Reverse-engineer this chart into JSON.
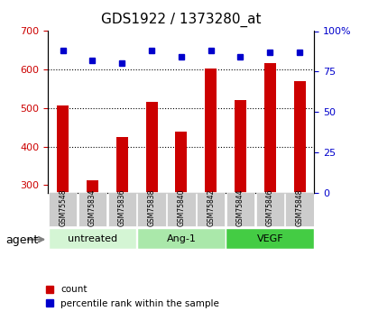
{
  "title": "GDS1922 / 1373280_at",
  "categories": [
    "GSM75548",
    "GSM75834",
    "GSM75836",
    "GSM75838",
    "GSM75840",
    "GSM75842",
    "GSM75844",
    "GSM75846",
    "GSM75848"
  ],
  "counts": [
    507,
    312,
    425,
    517,
    440,
    602,
    520,
    617,
    570
  ],
  "percentiles": [
    88,
    82,
    80,
    88,
    84,
    88,
    84,
    87,
    87
  ],
  "bar_color": "#cc0000",
  "dot_color": "#0000cc",
  "ylim_left": [
    280,
    700
  ],
  "ylim_right": [
    0,
    100
  ],
  "yticks_left": [
    300,
    400,
    500,
    600,
    700
  ],
  "yticks_right": [
    0,
    25,
    50,
    75,
    100
  ],
  "ytick_right_labels": [
    "0",
    "25",
    "50",
    "75",
    "100%"
  ],
  "groups": [
    {
      "label": "untreated",
      "start": 0,
      "end": 3,
      "color": "#d4f5d4"
    },
    {
      "label": "Ang-1",
      "start": 3,
      "end": 6,
      "color": "#aae8aa"
    },
    {
      "label": "VEGF",
      "start": 6,
      "end": 9,
      "color": "#44cc44"
    }
  ],
  "agent_label": "agent",
  "legend_count_label": "count",
  "legend_percentile_label": "percentile rank within the sample",
  "tick_label_color_left": "#cc0000",
  "tick_label_color_right": "#0000cc",
  "grid_yticks": [
    400,
    500,
    600
  ]
}
